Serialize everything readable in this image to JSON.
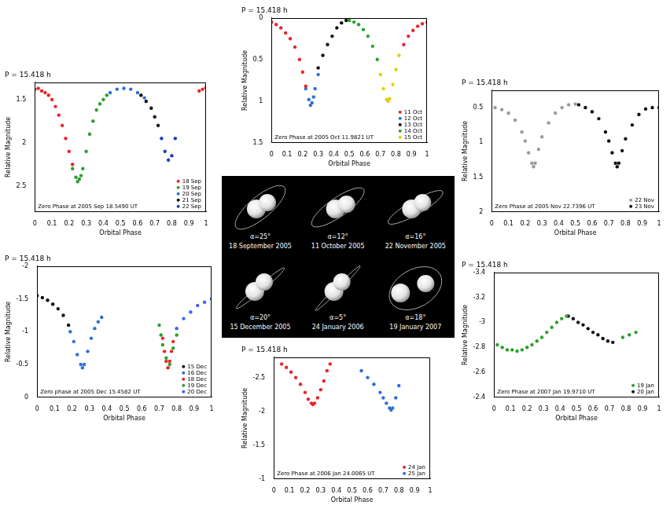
{
  "chart_data": [
    {
      "type": "scatter",
      "title": "P = 15.418 h",
      "annotation": "Zero Phase at 2005 Sep 18.5490 UT",
      "xlabel": "Orbital Phase",
      "ylabel": "Relative Magnitude",
      "xlim": [
        0,
        1
      ],
      "xticks": [
        0,
        0.1,
        0.2,
        0.3,
        0.4,
        0.5,
        0.6,
        0.7,
        0.8,
        0.9,
        1
      ],
      "ylim": [
        2.8,
        1.3
      ],
      "yticks": [
        1.5,
        2,
        2.5
      ],
      "grid": false,
      "legend": "lower right",
      "marker": "circle",
      "series": [
        {
          "name": "18 Sep",
          "color": "#e8262a",
          "x": [
            0,
            0.02,
            0.04,
            0.06,
            0.08,
            0.1,
            0.12,
            0.14,
            0.16,
            0.18,
            0.2,
            0.22,
            0.96,
            0.98,
            1
          ],
          "values": [
            1.38,
            1.37,
            1.4,
            1.42,
            1.45,
            1.5,
            1.58,
            1.68,
            1.8,
            1.95,
            2.1,
            2.25,
            1.4,
            1.38,
            1.36
          ]
        },
        {
          "name": "19 Sep",
          "color": "#2ca02c",
          "x": [
            0.22,
            0.24,
            0.25,
            0.26,
            0.27,
            0.28,
            0.3,
            0.32,
            0.34,
            0.36,
            0.38,
            0.4,
            0.42
          ],
          "values": [
            2.3,
            2.4,
            2.45,
            2.42,
            2.38,
            2.3,
            2.1,
            1.9,
            1.75,
            1.62,
            1.55,
            1.5,
            1.45
          ]
        },
        {
          "name": "20 Sep",
          "color": "#2f6fd6",
          "x": [
            0.44,
            0.48,
            0.52,
            0.56,
            0.6,
            0.64
          ],
          "values": [
            1.42,
            1.38,
            1.37,
            1.38,
            1.42,
            1.48
          ]
        },
        {
          "name": "21 Sep",
          "color": "#111111",
          "x": [
            0.62,
            0.65,
            0.68,
            0.7,
            0.72
          ],
          "values": [
            1.45,
            1.52,
            1.6,
            1.7,
            1.8
          ]
        },
        {
          "name": "22 Sep",
          "color": "#1f3fbf",
          "x": [
            0.74,
            0.76,
            0.78,
            0.8,
            0.82
          ],
          "values": [
            1.95,
            2.1,
            2.2,
            2.15,
            1.95
          ]
        }
      ]
    },
    {
      "type": "scatter",
      "title": "P = 15.418 h",
      "annotation": "Zero Phase at 2005 Oct 11.9821 UT",
      "xlabel": "Orbital Phase",
      "ylabel": "Relative Magnitude",
      "xlim": [
        0,
        1
      ],
      "xticks": [
        0,
        0.1,
        0.2,
        0.3,
        0.4,
        0.5,
        0.6,
        0.7,
        0.8,
        0.9,
        1
      ],
      "ylim": [
        1.5,
        0
      ],
      "yticks": [
        0,
        0.5,
        1,
        1.5
      ],
      "grid": false,
      "legend": "lower right",
      "marker": "circle",
      "series": [
        {
          "name": "11 Oct",
          "color": "#e8262a",
          "x": [
            0,
            0.03,
            0.06,
            0.09,
            0.12,
            0.15,
            0.18,
            0.2,
            0.22,
            0.85,
            0.88,
            0.91,
            0.94,
            0.97,
            1
          ],
          "values": [
            0.05,
            0.08,
            0.12,
            0.18,
            0.25,
            0.35,
            0.5,
            0.65,
            0.82,
            0.32,
            0.22,
            0.15,
            0.1,
            0.07,
            0.05
          ]
        },
        {
          "name": "12 Oct",
          "color": "#2f6fd6",
          "x": [
            0.22,
            0.24,
            0.25,
            0.26,
            0.27,
            0.28,
            0.3
          ],
          "values": [
            0.85,
            0.98,
            1.05,
            1.02,
            0.95,
            0.85,
            0.68
          ]
        },
        {
          "name": "13 Oct",
          "color": "#111111",
          "x": [
            0.3,
            0.33,
            0.36,
            0.39,
            0.42,
            0.45,
            0.48
          ],
          "values": [
            0.6,
            0.45,
            0.32,
            0.22,
            0.12,
            0.06,
            0.03
          ]
        },
        {
          "name": "14 Oct",
          "color": "#2ca02c",
          "x": [
            0.5,
            0.53,
            0.56,
            0.59,
            0.62,
            0.65,
            0.68
          ],
          "values": [
            0.03,
            0.05,
            0.08,
            0.14,
            0.22,
            0.34,
            0.5
          ]
        },
        {
          "name": "15 Oct",
          "color": "#e0d000",
          "x": [
            0.7,
            0.72,
            0.74,
            0.75,
            0.76,
            0.78,
            0.8,
            0.82
          ],
          "values": [
            0.68,
            0.85,
            0.98,
            1.0,
            0.97,
            0.8,
            0.62,
            0.45
          ]
        }
      ]
    },
    {
      "type": "scatter",
      "title": "P = 15.418 h",
      "annotation": "Zero Phase at 2005 Nov 22.7396 UT",
      "xlabel": "Orbital Phase",
      "ylabel": "Relative Magnitude",
      "xlim": [
        0,
        1
      ],
      "xticks": [
        0,
        0.1,
        0.2,
        0.3,
        0.4,
        0.5,
        0.6,
        0.7,
        0.8,
        0.9,
        1
      ],
      "ylim": [
        2,
        0.25
      ],
      "yticks": [
        0.5,
        1,
        1.5,
        2
      ],
      "grid": false,
      "legend": "lower right",
      "marker": "circle",
      "series": [
        {
          "name": "22 Nov",
          "color": "#9a9a9a",
          "x": [
            0.02,
            0.06,
            0.1,
            0.14,
            0.18,
            0.2,
            0.22,
            0.24,
            0.25,
            0.26,
            0.28,
            0.3,
            0.34,
            0.38,
            0.42,
            0.46,
            0.5
          ],
          "values": [
            0.5,
            0.53,
            0.58,
            0.68,
            0.85,
            0.98,
            1.15,
            1.3,
            1.35,
            1.3,
            1.1,
            0.92,
            0.72,
            0.58,
            0.5,
            0.46,
            0.45
          ]
        },
        {
          "name": "23 Nov",
          "color": "#111111",
          "x": [
            0.52,
            0.56,
            0.6,
            0.64,
            0.68,
            0.7,
            0.72,
            0.74,
            0.75,
            0.76,
            0.78,
            0.8,
            0.84,
            0.88,
            0.92,
            0.96,
            1
          ],
          "values": [
            0.46,
            0.5,
            0.56,
            0.66,
            0.85,
            0.98,
            1.15,
            1.3,
            1.35,
            1.3,
            1.12,
            0.95,
            0.75,
            0.6,
            0.52,
            0.5,
            0.5
          ]
        }
      ]
    },
    {
      "type": "scatter",
      "title": "P = 15.418 h",
      "annotation": "Zero phase at 2005 Dec 15.4582 UT",
      "xlabel": "Orbital Phase",
      "ylabel": "Relative Magnitude",
      "xlim": [
        0,
        1
      ],
      "xticks": [
        0,
        0.1,
        0.2,
        0.3,
        0.4,
        0.5,
        0.6,
        0.7,
        0.8,
        0.9,
        1
      ],
      "ylim": [
        0,
        -2
      ],
      "yticks": [
        -2,
        -1.5,
        -1,
        -0.5,
        0
      ],
      "grid": false,
      "legend": "lower right",
      "marker": "circle",
      "series": [
        {
          "name": "15 Dec",
          "color": "#111111",
          "x": [
            0,
            0.03,
            0.06,
            0.09,
            0.12,
            0.15,
            0.18
          ],
          "values": [
            -1.55,
            -1.52,
            -1.48,
            -1.42,
            -1.35,
            -1.25,
            -1.1
          ]
        },
        {
          "name": "16 Dec",
          "color": "#2f6fd6",
          "x": [
            0.19,
            0.21,
            0.23,
            0.25,
            0.26,
            0.27,
            0.29,
            0.31,
            0.33,
            0.35,
            0.37
          ],
          "values": [
            -1.0,
            -0.85,
            -0.65,
            -0.5,
            -0.45,
            -0.5,
            -0.7,
            -0.9,
            -1.05,
            -1.15,
            -1.22
          ]
        },
        {
          "name": "18 Dec",
          "color": "#e8262a",
          "x": [
            0.72,
            0.73,
            0.74,
            0.75,
            0.76,
            0.77,
            0.78
          ],
          "values": [
            -0.9,
            -0.7,
            -0.55,
            -0.45,
            -0.55,
            -0.7,
            -0.85
          ]
        },
        {
          "name": "19 Dec",
          "color": "#2ca02c",
          "x": [
            0.7,
            0.71,
            0.72,
            0.74,
            0.76,
            0.78,
            0.8
          ],
          "values": [
            -1.1,
            -0.95,
            -0.8,
            -0.6,
            -0.5,
            -0.75,
            -0.95
          ]
        },
        {
          "name": "20 Dec",
          "color": "#4060ff",
          "x": [
            0.8,
            0.84,
            0.88,
            0.92,
            0.96,
            1
          ],
          "values": [
            -1.05,
            -1.2,
            -1.3,
            -1.4,
            -1.45,
            -1.5
          ]
        }
      ]
    },
    {
      "type": "scatter",
      "title": "P = 15.418 h",
      "annotation": "Zero Phase at 2007 Jan 19.9710 UT",
      "xlabel": "Orbital Phase",
      "ylabel": "Relative Magnitude",
      "xlim": [
        0,
        1
      ],
      "xticks": [
        0,
        0.1,
        0.2,
        0.3,
        0.4,
        0.5,
        0.6,
        0.7,
        0.8,
        0.9,
        1
      ],
      "ylim": [
        -2.4,
        -3.4
      ],
      "yticks": [
        -3.4,
        -3.2,
        -3,
        -2.8,
        -2.6,
        -2.4
      ],
      "grid": false,
      "legend": "lower right",
      "marker": "circle",
      "series": [
        {
          "name": "19 Jan",
          "color": "#2ca02c",
          "x": [
            0.02,
            0.05,
            0.08,
            0.11,
            0.14,
            0.17,
            0.2,
            0.23,
            0.26,
            0.29,
            0.32,
            0.35,
            0.38,
            0.41,
            0.44,
            0.78,
            0.82,
            0.86
          ],
          "values": [
            -2.82,
            -2.8,
            -2.78,
            -2.78,
            -2.77,
            -2.78,
            -2.8,
            -2.82,
            -2.85,
            -2.88,
            -2.92,
            -2.96,
            -3.0,
            -3.03,
            -3.05,
            -2.88,
            -2.9,
            -2.92
          ]
        },
        {
          "name": "20 Jan",
          "color": "#111111",
          "x": [
            0.45,
            0.48,
            0.51,
            0.54,
            0.57,
            0.6,
            0.63,
            0.66,
            0.69,
            0.72
          ],
          "values": [
            -3.05,
            -3.03,
            -3.0,
            -2.98,
            -2.95,
            -2.92,
            -2.9,
            -2.87,
            -2.85,
            -2.84
          ]
        }
      ]
    },
    {
      "type": "scatter",
      "title": "P = 15.418 h",
      "annotation": "Zero Phase at 2006 Jan 24.0065 UT",
      "xlabel": "Orbital Phase",
      "ylabel": "Relative Magnitude",
      "xlim": [
        0,
        1
      ],
      "xticks": [
        0,
        0.1,
        0.2,
        0.3,
        0.4,
        0.5,
        0.6,
        0.7,
        0.8,
        0.9,
        1
      ],
      "ylim": [
        -1,
        -2.8
      ],
      "yticks": [
        -2.5,
        -2,
        -1.5,
        -1
      ],
      "grid": false,
      "legend": "lower right",
      "marker": "circle",
      "series": [
        {
          "name": "24 Jan",
          "color": "#e8262a",
          "x": [
            0.05,
            0.08,
            0.11,
            0.14,
            0.17,
            0.2,
            0.22,
            0.24,
            0.25,
            0.26,
            0.28,
            0.3,
            0.32,
            0.34,
            0.36
          ],
          "values": [
            -2.7,
            -2.65,
            -2.58,
            -2.5,
            -2.4,
            -2.28,
            -2.18,
            -2.12,
            -2.1,
            -2.12,
            -2.2,
            -2.32,
            -2.45,
            -2.6,
            -2.7
          ]
        },
        {
          "name": "25 Jan",
          "color": "#2f6fd6",
          "x": [
            0.56,
            0.6,
            0.64,
            0.68,
            0.7,
            0.72,
            0.74,
            0.75,
            0.76,
            0.78,
            0.8
          ],
          "values": [
            -2.6,
            -2.5,
            -2.4,
            -2.28,
            -2.2,
            -2.12,
            -2.05,
            -2.02,
            -2.05,
            -2.2,
            -2.38
          ]
        }
      ]
    }
  ],
  "orbit_diagram": {
    "panels": [
      {
        "phase_angle": "α=25°",
        "date": "18 September 2005"
      },
      {
        "phase_angle": "α=12°",
        "date": "11 October 2005"
      },
      {
        "phase_angle": "α=16°",
        "date": "22 November 2005"
      },
      {
        "phase_angle": "α=20°",
        "date": "15 December 2005"
      },
      {
        "phase_angle": "α=5°",
        "date": "24 January 2006"
      },
      {
        "phase_angle": "α=18°",
        "date": "19 January 2007"
      }
    ]
  }
}
